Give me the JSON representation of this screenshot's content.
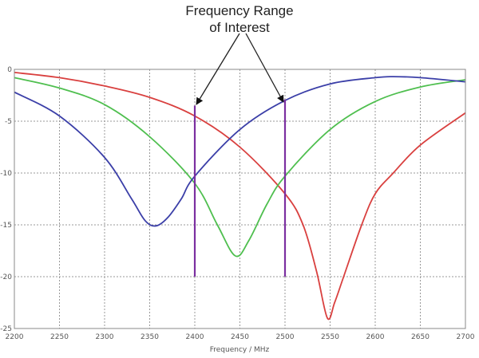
{
  "chart_data": {
    "type": "line",
    "title": "",
    "xlabel": "Frequency / MHz",
    "ylabel": "",
    "xlim": [
      2200,
      2700
    ],
    "ylim": [
      -25,
      0
    ],
    "grid": true,
    "x_ticks": [
      "2200",
      "2250",
      "2300",
      "2350",
      "2400",
      "2450",
      "2500",
      "2550",
      "2600",
      "2650",
      "2700"
    ],
    "y_ticks": [
      "0",
      "-5",
      "-10",
      "-15",
      "-20",
      "-25"
    ],
    "annotation": {
      "line1": "Frequency Range",
      "line2": "of Interest"
    },
    "range_markers": [
      {
        "x": 2400,
        "y_top": -3.5,
        "y_bottom": -20
      },
      {
        "x": 2500,
        "y_top": -2.9,
        "y_bottom": -20
      }
    ],
    "marker_color": "#7b2fa0",
    "series": [
      {
        "color": "#d9403f",
        "x": [
          2200,
          2250,
          2300,
          2350,
          2400,
          2450,
          2500,
          2520,
          2535,
          2547,
          2555,
          2565,
          2585,
          2600,
          2620,
          2650,
          2700
        ],
        "y": [
          -0.3,
          -0.8,
          -1.6,
          -2.7,
          -4.5,
          -7.5,
          -12,
          -15,
          -19.5,
          -24,
          -22.5,
          -20,
          -15,
          -12,
          -10,
          -7.3,
          -4.2
        ]
      },
      {
        "color": "#4fbf4f",
        "x": [
          2200,
          2250,
          2300,
          2350,
          2400,
          2425,
          2445,
          2460,
          2480,
          2500,
          2550,
          2600,
          2650,
          2700
        ],
        "y": [
          -0.8,
          -1.8,
          -3.4,
          -6.5,
          -11,
          -15,
          -18,
          -16.5,
          -13,
          -10.3,
          -5.8,
          -3.1,
          -1.7,
          -1.0
        ]
      },
      {
        "color": "#3b3fa8",
        "x": [
          2200,
          2250,
          2300,
          2330,
          2345,
          2357,
          2370,
          2385,
          2400,
          2450,
          2500,
          2550,
          2600,
          2620,
          2650,
          2700
        ],
        "y": [
          -2.2,
          -4.5,
          -8.5,
          -12.5,
          -14.6,
          -15.1,
          -14.3,
          -12.5,
          -10.3,
          -5.8,
          -3.0,
          -1.4,
          -0.8,
          -0.7,
          -0.8,
          -1.2
        ]
      }
    ]
  }
}
